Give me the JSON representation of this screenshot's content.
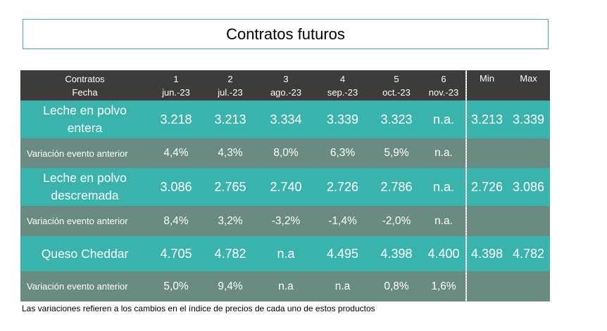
{
  "title": "Contratos futuros",
  "header": {
    "label_top": "Contratos",
    "label_bottom": "Fecha",
    "contracts": [
      {
        "num": "1",
        "date": "jun.-23"
      },
      {
        "num": "2",
        "date": "jul.-23"
      },
      {
        "num": "3",
        "date": "ago.-23"
      },
      {
        "num": "4",
        "date": "sep.-23"
      },
      {
        "num": "5",
        "date": "oct.-23"
      },
      {
        "num": "6",
        "date": "nov.-23"
      }
    ],
    "min": "Min",
    "max": "Max"
  },
  "rows": [
    {
      "product": [
        "Leche en polvo",
        "entera"
      ],
      "values": [
        "3.218",
        "3.213",
        "3.334",
        "3.339",
        "3.323",
        "n.a."
      ],
      "min": "3.213",
      "max": "3.339",
      "variation_label": "Variación evento anterior",
      "variation": [
        "4,4%",
        "4,3%",
        "8,0%",
        "6,3%",
        "5,9%",
        "n.a."
      ]
    },
    {
      "product": [
        "Leche en polvo",
        "descremada"
      ],
      "values": [
        "3.086",
        "2.765",
        "2.740",
        "2.726",
        "2.786",
        "n.a."
      ],
      "min": "2.726",
      "max": "3.086",
      "variation_label": "Variación evento anterior",
      "variation": [
        "8,4%",
        "3,2%",
        "-3,2%",
        "-1,4%",
        "-2,0%",
        "n.a."
      ]
    },
    {
      "product": [
        "Queso Cheddar"
      ],
      "values": [
        "4.705",
        "4.782",
        "n.a",
        "4.495",
        "4.398",
        "4.400"
      ],
      "min": "4.398",
      "max": "4.782",
      "variation_label": "Variación evento anterior",
      "variation": [
        "5,0%",
        "9,4%",
        "n.a",
        "n.a",
        "0,8%",
        "1,6%"
      ]
    }
  ],
  "footnote": "Las variaciones refieren a los cambios en el índice de precios de cada uno de estos productos"
}
